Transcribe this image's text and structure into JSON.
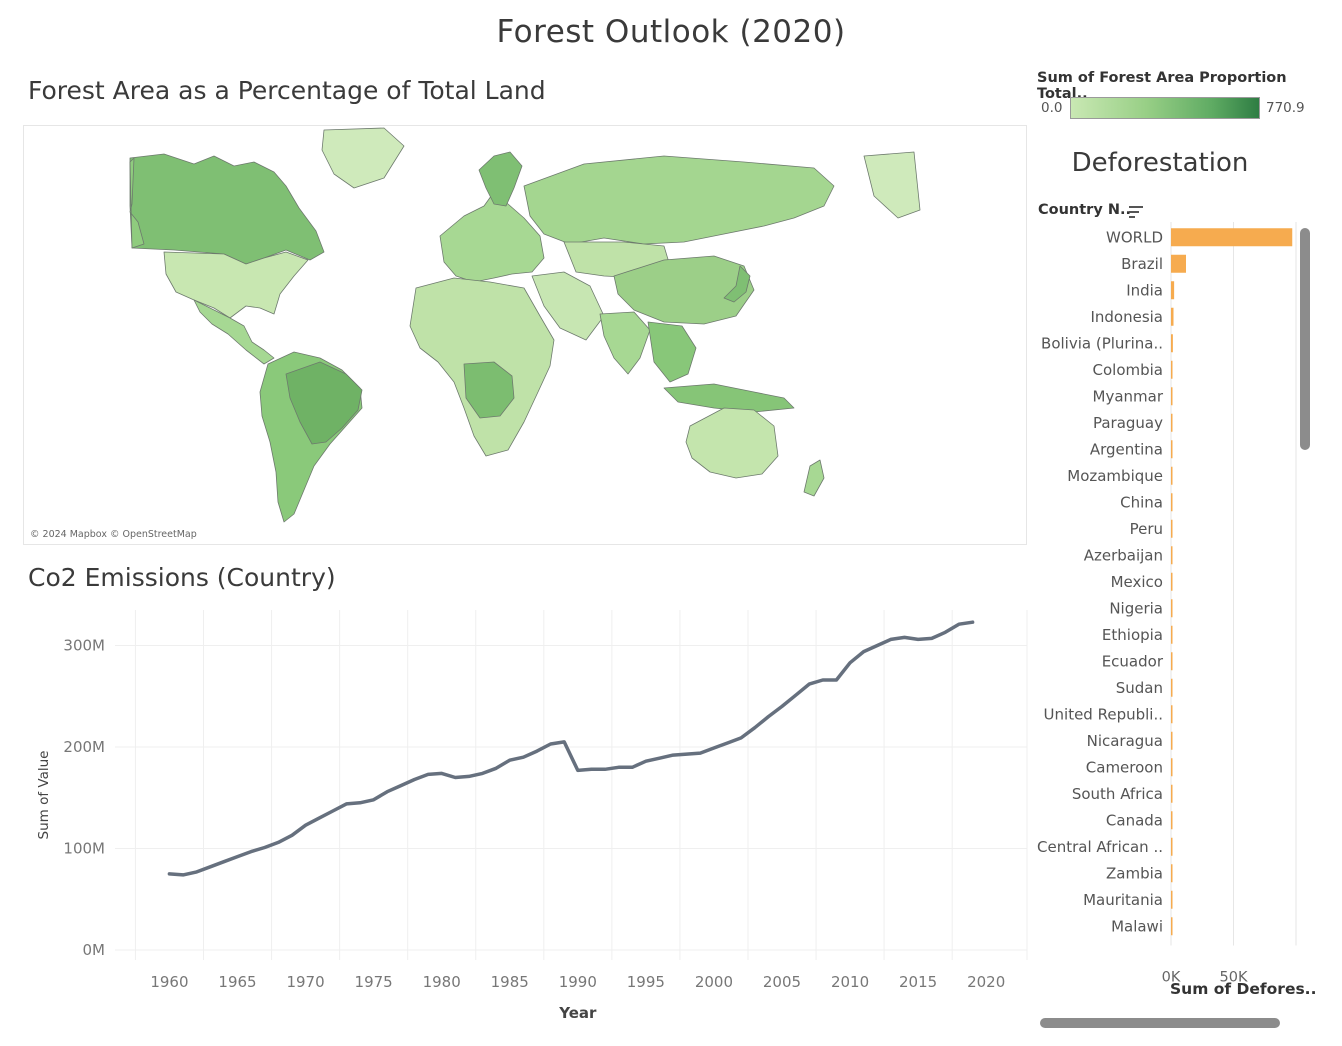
{
  "page": {
    "title": "Forest Outlook (2020)"
  },
  "map": {
    "title": "Forest Area as a Percentage of Total Land",
    "credit": "© 2024 Mapbox © OpenStreetMap",
    "legend": {
      "title": "Sum of Forest Area Proportion Total..",
      "min": "0.0",
      "max": "770.9",
      "color_low": "#c9e8b3",
      "color_high": "#2e7d43"
    }
  },
  "deforestation": {
    "title": "Deforestation",
    "field_label": "Country N..",
    "x_axis_label": "Sum of Defores..",
    "bar_color": "#f6ab4f"
  },
  "co2": {
    "title": "Co2 Emissions (Country)",
    "line_color": "#66707e"
  },
  "chart_data": [
    {
      "type": "bar",
      "orientation": "horizontal",
      "title": "Deforestation",
      "ylabel": "Country N..",
      "xlabel": "Sum of Defores..",
      "x_ticks": [
        "0K",
        "50K"
      ],
      "categories": [
        "WORLD",
        "Brazil",
        "India",
        "Indonesia",
        "Bolivia (Plurina..",
        "Colombia",
        "Myanmar",
        "Paraguay",
        "Argentina",
        "Mozambique",
        "China",
        "Peru",
        "Azerbaijan",
        "Mexico",
        "Nigeria",
        "Ethiopia",
        "Ecuador",
        "Sudan",
        "United Republi..",
        "Nicaragua",
        "Cameroon",
        "South Africa",
        "Canada",
        "Central African ..",
        "Zambia",
        "Mauritania",
        "Malawi"
      ],
      "values": [
        97000,
        12000,
        2500,
        2000,
        1500,
        400,
        300,
        250,
        250,
        200,
        200,
        150,
        150,
        150,
        120,
        120,
        100,
        100,
        100,
        80,
        80,
        80,
        60,
        60,
        60,
        50,
        50
      ],
      "xlim": [
        0,
        100000
      ],
      "grid": true
    },
    {
      "type": "line",
      "title": "Co2 Emissions (Country)",
      "xlabel": "Year",
      "ylabel": "Sum of Value",
      "y_ticks": [
        "0M",
        "100M",
        "200M",
        "300M"
      ],
      "x_ticks": [
        "1960",
        "1965",
        "1970",
        "1975",
        "1980",
        "1985",
        "1990",
        "1995",
        "2000",
        "2005",
        "2010",
        "2015",
        "2020"
      ],
      "ylim": [
        0,
        335000000
      ],
      "xlim": [
        1956,
        2023
      ],
      "grid": true,
      "series": [
        {
          "x": [
            1960,
            1961,
            1962,
            1963,
            1964,
            1965,
            1966,
            1967,
            1968,
            1969,
            1970,
            1971,
            1972,
            1973,
            1974,
            1975,
            1976,
            1977,
            1978,
            1979,
            1980,
            1981,
            1982,
            1983,
            1984,
            1985,
            1986,
            1987,
            1988,
            1989,
            1990,
            1991,
            1992,
            1993,
            1994,
            1995,
            1996,
            1997,
            1998,
            1999,
            2000,
            2001,
            2002,
            2003,
            2004,
            2005,
            2006,
            2007,
            2008,
            2009,
            2010,
            2011,
            2012,
            2013,
            2014,
            2015,
            2016,
            2017,
            2018,
            2019
          ],
          "values": [
            75000000,
            74000000,
            77000000,
            82000000,
            87000000,
            92000000,
            97000000,
            101000000,
            106000000,
            113000000,
            123000000,
            130000000,
            137000000,
            144000000,
            145000000,
            148000000,
            156000000,
            162000000,
            168000000,
            173000000,
            174000000,
            170000000,
            171000000,
            174000000,
            179000000,
            187000000,
            190000000,
            196000000,
            203000000,
            205000000,
            177000000,
            178000000,
            178000000,
            180000000,
            180000000,
            186000000,
            189000000,
            192000000,
            193000000,
            194000000,
            199000000,
            204000000,
            209000000,
            219000000,
            230000000,
            240000000,
            251000000,
            262000000,
            266000000,
            266000000,
            283000000,
            294000000,
            300000000,
            306000000,
            308000000,
            306000000,
            307000000,
            313000000,
            321000000,
            323000000
          ]
        }
      ]
    }
  ]
}
